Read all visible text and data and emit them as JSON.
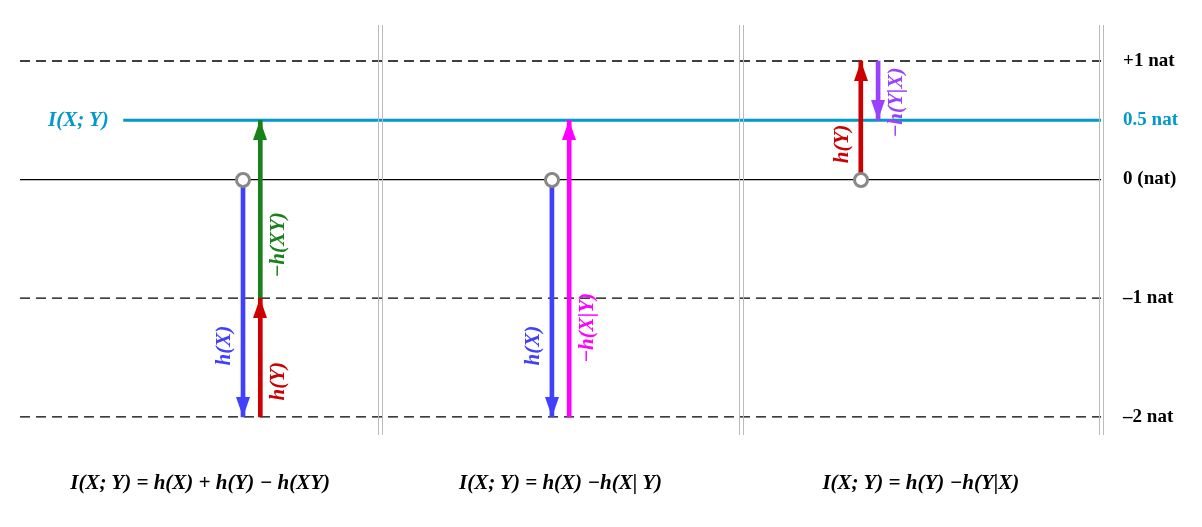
{
  "chart_data": {
    "type": "bar",
    "categories": [
      null,
      null,
      null
    ],
    "series": [
      {
        "name": "h(X)",
        "color": "#4040ff",
        "base": [
          0,
          0,
          null
        ],
        "values": [
          -2,
          -2,
          null
        ]
      },
      {
        "name": "h(Y)",
        "color": "#cc0000",
        "base": [
          -2,
          null,
          0
        ],
        "values": [
          1,
          null,
          1
        ]
      },
      {
        "name": "−h(XY)",
        "color": "#1a801a",
        "base": [
          -1,
          null,
          null
        ],
        "values": [
          1.5,
          null,
          null
        ]
      },
      {
        "name": "−h(X|Y)",
        "color": "#ff00ff",
        "base": [
          null,
          -2,
          null
        ],
        "values": [
          null,
          2.5,
          null
        ]
      },
      {
        "name": "−h(Y|X)",
        "color": "#9b40ff",
        "base": [
          null,
          null,
          1
        ],
        "values": [
          null,
          null,
          -0.5
        ]
      }
    ],
    "ylim": [
      -2.15,
      1.3
    ],
    "yticks": [
      {
        "value": 1,
        "label": "+1 nat"
      },
      {
        "value": 0.5,
        "label": "0.5 nat"
      },
      {
        "value": 0,
        "label": "0 (nat)"
      },
      {
        "value": -1,
        "label": "–1 nat"
      },
      {
        "value": -2,
        "label": "–2 nat"
      }
    ],
    "ref_lines": [
      {
        "axis": "y",
        "value": 1,
        "line_style": "dashed",
        "color": "#000000"
      },
      {
        "axis": "y",
        "value": 0.5,
        "label": "I(X; Y)",
        "color": "#0099cc",
        "line_style": "solid"
      },
      {
        "axis": "y",
        "value": 0,
        "color": "#000000",
        "line_style": "solid"
      },
      {
        "axis": "y",
        "value": -1,
        "line_style": "dashed",
        "color": "#000000"
      },
      {
        "axis": "y",
        "value": -2,
        "line_style": "dashed",
        "color": "#000000"
      }
    ],
    "annotations": [
      "I(X; Y) = h(X) + h(Y) − h(XY)",
      "I(X; Y) = h(X) −h(X| Y)",
      "I(X; Y) = h(Y) −h(Y|X)"
    ]
  }
}
